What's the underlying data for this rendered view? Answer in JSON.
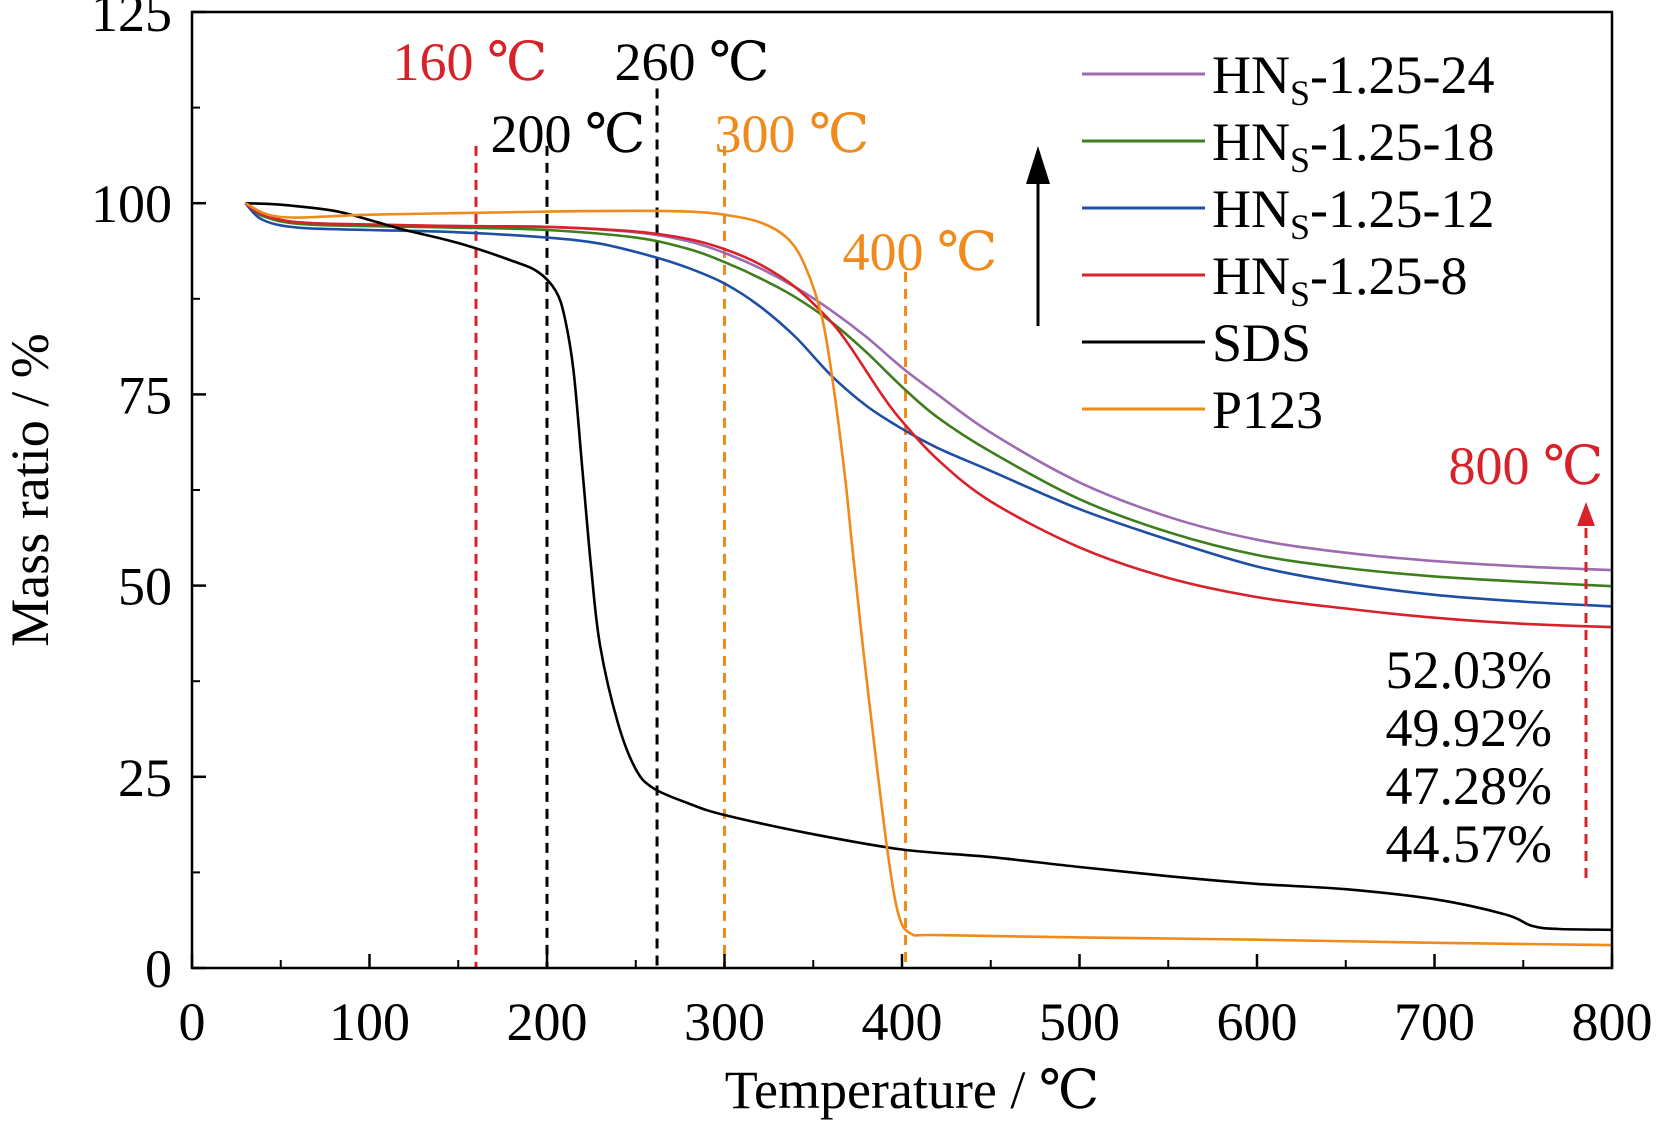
{
  "chart_data": {
    "type": "line",
    "title": "",
    "xlabel": "Temperature / ℃",
    "ylabel": "Mass ratio / %",
    "xlim": [
      0,
      800
    ],
    "ylim": [
      0,
      125
    ],
    "xticks": [
      0,
      100,
      200,
      300,
      400,
      500,
      600,
      700,
      800
    ],
    "yticks": [
      0,
      25,
      50,
      75,
      100,
      125
    ],
    "grid": false,
    "legend_position": "top-right",
    "series": [
      {
        "name": "HN_S-1.25-24",
        "base": "HN",
        "sub": "S",
        "suffix": "-1.25-24",
        "color": "#9e6bb0",
        "x": [
          30,
          40,
          60,
          100,
          150,
          200,
          250,
          280,
          300,
          320,
          340,
          360,
          380,
          400,
          420,
          450,
          500,
          550,
          600,
          650,
          700,
          750,
          800
        ],
        "y": [
          100,
          98.5,
          97.5,
          97.2,
          97,
          96.9,
          96.2,
          95,
          93.5,
          91.5,
          89,
          86,
          82.5,
          78.5,
          75,
          70,
          63.5,
          59,
          56,
          54.3,
          53.2,
          52.5,
          52.03
        ]
      },
      {
        "name": "HN_S-1.25-18",
        "base": "HN",
        "sub": "S",
        "suffix": "-1.25-18",
        "color": "#3f7e1d",
        "x": [
          30,
          40,
          60,
          100,
          150,
          200,
          250,
          280,
          300,
          320,
          340,
          360,
          380,
          400,
          420,
          450,
          500,
          550,
          600,
          650,
          700,
          750,
          800
        ],
        "y": [
          100,
          98.3,
          97.3,
          97,
          96.8,
          96.5,
          95.5,
          94,
          92.3,
          90.2,
          87.7,
          84.5,
          80.5,
          76,
          72,
          67.5,
          61.3,
          57,
          54,
          52.3,
          51.2,
          50.5,
          49.92
        ]
      },
      {
        "name": "HN_S-1.25-12",
        "base": "HN",
        "sub": "S",
        "suffix": "-1.25-12",
        "color": "#1f4fa3",
        "x": [
          30,
          40,
          60,
          100,
          150,
          200,
          230,
          260,
          280,
          300,
          320,
          340,
          360,
          380,
          400,
          420,
          450,
          500,
          550,
          600,
          650,
          700,
          750,
          800
        ],
        "y": [
          100,
          97.8,
          96.8,
          96.5,
          96.2,
          95.5,
          94.7,
          93,
          91.5,
          89.5,
          86.5,
          82.5,
          77.5,
          73.5,
          70.5,
          68,
          65,
          60,
          56,
          52.5,
          50.3,
          48.8,
          47.9,
          47.28
        ]
      },
      {
        "name": "HN_S-1.25-8",
        "base": "HN",
        "sub": "S",
        "suffix": "-1.25-8",
        "color": "#d8222a",
        "x": [
          30,
          40,
          60,
          100,
          150,
          200,
          250,
          280,
          300,
          320,
          340,
          360,
          370,
          380,
          390,
          400,
          420,
          450,
          500,
          550,
          600,
          650,
          700,
          750,
          800
        ],
        "y": [
          100,
          98.5,
          97.5,
          97.2,
          97,
          96.9,
          96.3,
          95.3,
          94,
          92,
          89,
          84.5,
          81.5,
          78,
          74.5,
          71.5,
          66.5,
          61,
          55,
          51,
          48.5,
          47,
          45.8,
          45,
          44.57
        ]
      },
      {
        "name": "SDS",
        "base": "SDS",
        "sub": "",
        "suffix": "",
        "color": "#000000",
        "x": [
          30,
          50,
          80,
          100,
          120,
          150,
          180,
          195,
          205,
          210,
          215,
          220,
          225,
          230,
          240,
          250,
          260,
          280,
          300,
          350,
          400,
          450,
          500,
          550,
          600,
          650,
          700,
          740,
          755,
          770,
          800
        ],
        "y": [
          100,
          99.8,
          99,
          97.8,
          96.5,
          94.8,
          92.5,
          91,
          88.5,
          85,
          78,
          65,
          52,
          42,
          32,
          26,
          23.5,
          21.5,
          20,
          17.5,
          15.5,
          14.5,
          13.2,
          12,
          11,
          10.3,
          9,
          7,
          5.5,
          5.1,
          5
        ]
      },
      {
        "name": "P123",
        "base": "P123",
        "sub": "",
        "suffix": "",
        "color": "#f08a1c",
        "x": [
          30,
          50,
          100,
          150,
          200,
          250,
          280,
          300,
          320,
          335,
          345,
          355,
          362,
          368,
          372,
          378,
          385,
          392,
          398,
          405,
          420,
          500,
          600,
          700,
          800
        ],
        "y": [
          100,
          98.2,
          98.5,
          98.7,
          98.9,
          99,
          98.9,
          98.5,
          97.5,
          95.5,
          92,
          85,
          75,
          64,
          55,
          42,
          28,
          15,
          7,
          4.5,
          4.3,
          4,
          3.7,
          3.3,
          3
        ]
      }
    ],
    "reference_lines": [
      {
        "x": 160,
        "color": "#d8222a"
      },
      {
        "x": 200,
        "color": "#000000"
      },
      {
        "x": 262,
        "color": "#000000"
      },
      {
        "x": 300,
        "color": "#f08a1c"
      },
      {
        "x": 402,
        "color": "#f08a1c"
      }
    ],
    "annotations": [
      {
        "text": "160 ℃",
        "color": "#d8222a"
      },
      {
        "text": "260 ℃",
        "color": "#000000"
      },
      {
        "text": "200 ℃",
        "color": "#000000"
      },
      {
        "text": "300 ℃",
        "color": "#f08a1c"
      },
      {
        "text": "400 ℃",
        "color": "#f08a1c"
      },
      {
        "text": "800 ℃",
        "color": "#d8222a"
      }
    ],
    "final_values": [
      "52.03%",
      "49.92%",
      "47.28%",
      "44.57%"
    ]
  }
}
